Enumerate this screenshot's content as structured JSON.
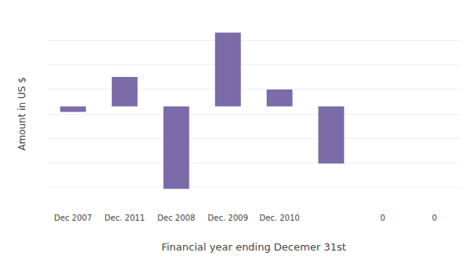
{
  "chart_data": {
    "type": "bar",
    "xlabel": "Financial year ending Decemer 31st",
    "ylabel": "Amount in US $",
    "categories": [
      "Dec 2007",
      "Dec. 2011",
      "Dec 2008",
      "Dec. 2009",
      "Dec. 2010",
      null,
      "0",
      "0"
    ],
    "values": [
      -26,
      140,
      -390,
      350,
      80,
      -270,
      0,
      0
    ],
    "color": "#7b6ba8",
    "ylim": [
      -500,
      430
    ],
    "yticks": [
      -500,
      -383.75,
      -267.5,
      -151.25,
      -35,
      81.25,
      197.5,
      313.75,
      430
    ],
    "grid": true,
    "tick_labels": "x"
  }
}
